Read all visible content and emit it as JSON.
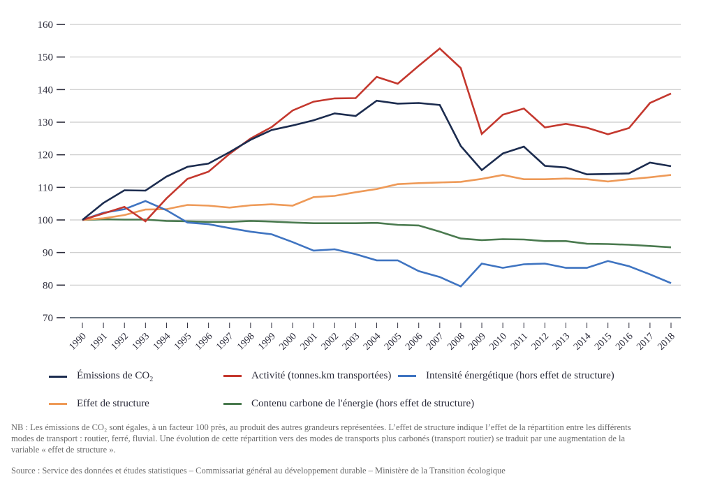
{
  "chart_data": {
    "type": "line",
    "title": "",
    "xlabel": "",
    "ylabel": "",
    "ylim": [
      70,
      160
    ],
    "yticks": [
      70,
      80,
      90,
      100,
      110,
      120,
      130,
      140,
      150,
      160
    ],
    "grid": true,
    "legend_position": "bottom",
    "x": [
      "1990",
      "1991",
      "1992",
      "1993",
      "1994",
      "1995",
      "1996",
      "1997",
      "1998",
      "1999",
      "2000",
      "2001",
      "2002",
      "2003",
      "2004",
      "2005",
      "2006",
      "2007",
      "2008",
      "2009",
      "2010",
      "2011",
      "2012",
      "2013",
      "2014",
      "2015",
      "2016",
      "2017",
      "2018"
    ],
    "series": [
      {
        "name": "Émissions de CO2",
        "label_main": "Émissions de CO",
        "label_sub": "2",
        "color": "#1c2c4f",
        "values": [
          100,
          105.2,
          109.1,
          109.0,
          113.3,
          116.3,
          117.3,
          120.8,
          124.6,
          127.6,
          129.0,
          130.6,
          132.7,
          131.9,
          136.6,
          135.7,
          135.9,
          135.3,
          122.7,
          115.3,
          120.4,
          122.5,
          116.6,
          116.1,
          114.0,
          114.1,
          114.3,
          117.6,
          116.5
        ]
      },
      {
        "name": "Activité (tonnes.km transportées)",
        "color": "#c4382e",
        "values": [
          100,
          102.0,
          104.0,
          99.6,
          106.6,
          112.6,
          114.8,
          120.3,
          125.0,
          128.5,
          133.6,
          136.3,
          137.3,
          137.4,
          143.9,
          141.8,
          147.3,
          152.6,
          146.6,
          126.4,
          132.3,
          134.2,
          128.4,
          129.5,
          128.3,
          126.3,
          128.2,
          135.9,
          138.8
        ]
      },
      {
        "name": "Intensité énergétique (hors effet de structure)",
        "color": "#3f74c1",
        "values": [
          100,
          102.2,
          103.3,
          105.8,
          103.0,
          99.2,
          98.7,
          97.5,
          96.4,
          95.6,
          93.2,
          90.6,
          91.0,
          89.5,
          87.6,
          87.6,
          84.3,
          82.5,
          79.6,
          86.6,
          85.3,
          86.4,
          86.6,
          85.3,
          85.3,
          87.4,
          85.8,
          83.3,
          80.6
        ]
      },
      {
        "name": "Effet de structure",
        "color": "#ee9a58",
        "values": [
          100,
          100.5,
          101.5,
          103.2,
          103.3,
          104.6,
          104.4,
          103.8,
          104.5,
          104.8,
          104.4,
          107.0,
          107.4,
          108.5,
          109.5,
          111.0,
          111.3,
          111.5,
          111.7,
          112.6,
          113.8,
          112.5,
          112.5,
          112.7,
          112.5,
          111.8,
          112.5,
          113.1,
          113.8
        ]
      },
      {
        "name": "Contenu carbone de l'énergie (hors effet de structure)",
        "color": "#4a7a4f",
        "values": [
          100,
          100.2,
          100.1,
          100.1,
          99.7,
          99.6,
          99.4,
          99.4,
          99.7,
          99.5,
          99.2,
          99.0,
          99.0,
          99.0,
          99.1,
          98.5,
          98.3,
          96.4,
          94.3,
          93.8,
          94.1,
          94.0,
          93.5,
          93.5,
          92.7,
          92.6,
          92.4,
          92.0,
          91.6
        ]
      }
    ]
  },
  "legend_rows": [
    [
      0,
      1,
      2
    ],
    [
      3,
      4
    ]
  ],
  "notes": {
    "nb_line1": "NB : Les émissions de CO₂ sont égales, à un facteur 100 près, au produit des autres grandeurs représentées. L’effet de structure indique l’effet de la répartition entre les différents",
    "nb_line2": "modes de transport : routier, ferré, fluvial. Une évolution de cette répartition vers des modes de transports plus carbonés (transport routier) se traduit par une augmentation de la",
    "nb_line3": "variable « effet de structure ».",
    "source": "Source : Service des données et études statistiques – Commissariat général au développement durable – Ministère de la Transition écologique"
  }
}
